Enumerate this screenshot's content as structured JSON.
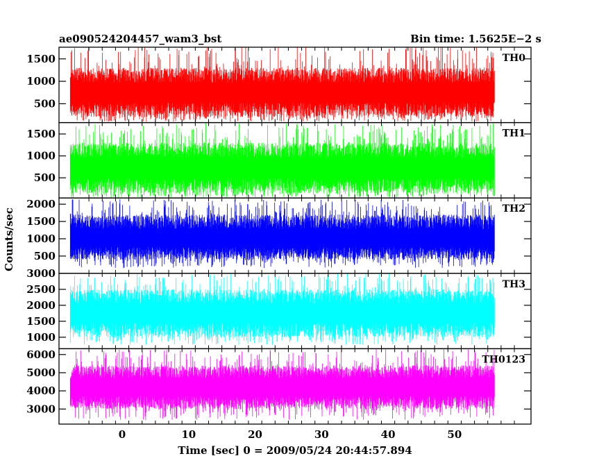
{
  "header": {
    "title": "ae090524204457_wam3_bst",
    "bin_time": "Bin time: 1.5625E−2 s"
  },
  "axes": {
    "xlabel": "Time [sec] 0 = 2009/05/24 20:44:57.894",
    "ylabel": "Counts/sec",
    "xlim": [
      -9.5,
      61.5
    ],
    "xticks": [
      0,
      10,
      20,
      30,
      40,
      50
    ],
    "data_range": [
      -7.8,
      56.0
    ]
  },
  "chart_data": {
    "type": "line",
    "xlabel": "Time [sec] 0 = 2009/05/24 20:44:57.894",
    "ylabel": "Counts/sec",
    "bin_time_s": 0.015625,
    "series": [
      {
        "name": "TH0",
        "color": "#ff0000",
        "ylim": [
          80,
          1760
        ],
        "yticks": [
          500,
          1000,
          1500
        ],
        "band": [
          200,
          1300
        ],
        "spikes": [
          100,
          1800
        ],
        "center": 750
      },
      {
        "name": "TH1",
        "color": "#00ff00",
        "ylim": [
          40,
          1760
        ],
        "yticks": [
          500,
          1000,
          1500
        ],
        "band": [
          150,
          1300
        ],
        "spikes": [
          50,
          1750
        ],
        "center": 720
      },
      {
        "name": "TH2",
        "color": "#0000ff",
        "ylim": [
          0,
          2180
        ],
        "yticks": [
          500,
          1000,
          1500,
          2000
        ],
        "band": [
          400,
          1700
        ],
        "spikes": [
          150,
          2150
        ],
        "center": 1000
      },
      {
        "name": "TH3",
        "color": "#00ffff",
        "ylim": [
          640,
          3000
        ],
        "yticks": [
          1000,
          1500,
          2000,
          2500,
          3000
        ],
        "band": [
          1000,
          2500
        ],
        "spikes": [
          760,
          3000
        ],
        "center": 1750
      },
      {
        "name": "TH0123",
        "color": "#ff00ff",
        "ylim": [
          2170,
          6320
        ],
        "yticks": [
          3000,
          4000,
          5000,
          6000
        ],
        "band": [
          3000,
          5400
        ],
        "spikes": [
          2400,
          6300
        ],
        "center": 4200
      }
    ]
  }
}
